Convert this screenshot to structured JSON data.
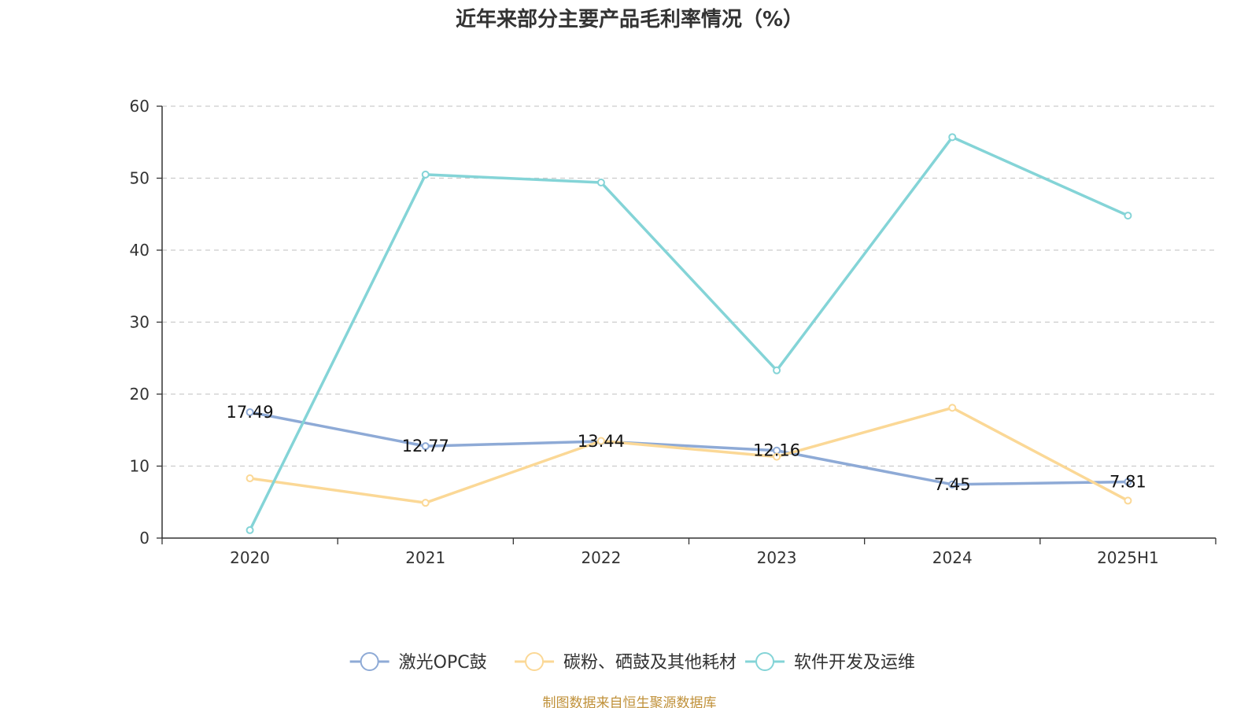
{
  "chart_data": {
    "type": "line",
    "title": "近年来部分主要产品毛利率情况（%）",
    "categories": [
      "2020",
      "2021",
      "2022",
      "2023",
      "2024",
      "2025H1"
    ],
    "ylim": [
      0,
      60
    ],
    "yticks": [
      "0",
      "10",
      "20",
      "30",
      "40",
      "50",
      "60"
    ],
    "grid": true,
    "legend_position": "bottom-center",
    "series": [
      {
        "name": "激光OPC鼓",
        "color": "#8eaad6",
        "values": [
          17.49,
          12.77,
          13.44,
          12.16,
          7.45,
          7.81
        ],
        "labels": [
          "17.49",
          "12.77",
          "13.44",
          "12.16",
          "7.45",
          "7.81"
        ]
      },
      {
        "name": "碳粉、硒鼓及其他耗材",
        "color": "#fbd896",
        "values": [
          8.3,
          4.9,
          13.5,
          11.3,
          18.1,
          5.2
        ]
      },
      {
        "name": "软件开发及运维",
        "color": "#84d4d7",
        "values": [
          1.1,
          50.5,
          49.4,
          23.3,
          55.7,
          44.8
        ]
      }
    ]
  },
  "source_note": "制图数据来自恒生聚源数据库"
}
